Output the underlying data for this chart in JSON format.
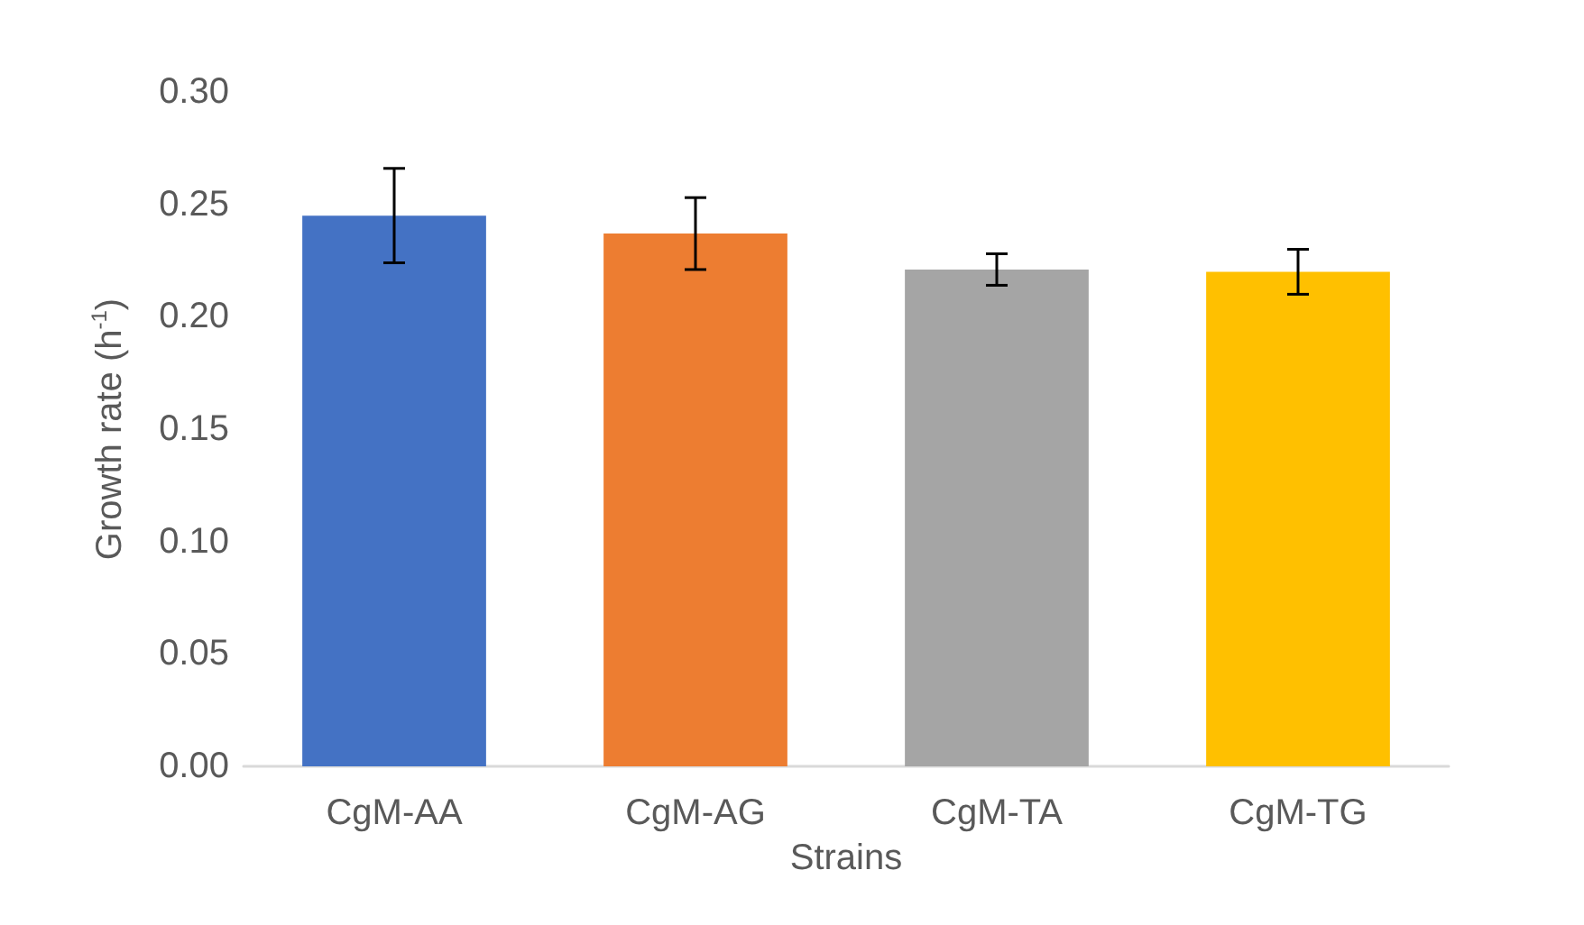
{
  "chart_data": {
    "type": "bar",
    "xlabel": "Strains",
    "ylabel": "Growth rate (h$^{-1}$)",
    "categories": [
      "CgM-AA",
      "CgM-AG",
      "CgM-TA",
      "CgM-TG"
    ],
    "values": [
      0.245,
      0.237,
      0.221,
      0.22
    ],
    "errors": [
      0.021,
      0.016,
      0.007,
      0.01
    ],
    "colors": [
      "#4472c4",
      "#ed7d31",
      "#a5a5a5",
      "#ffc000"
    ],
    "ylim": [
      0,
      0.3
    ],
    "yticks": [
      {
        "value": 0,
        "label": "0.00"
      },
      {
        "value": 0.05,
        "label": "0.05"
      },
      {
        "value": 0.1,
        "label": "0.10"
      },
      {
        "value": 0.15,
        "label": "0.15"
      },
      {
        "value": 0.2,
        "label": "0.20"
      },
      {
        "value": 0.25,
        "label": "0.25"
      },
      {
        "value": 0.3,
        "label": "0.30"
      }
    ],
    "tick_labels": true
  }
}
